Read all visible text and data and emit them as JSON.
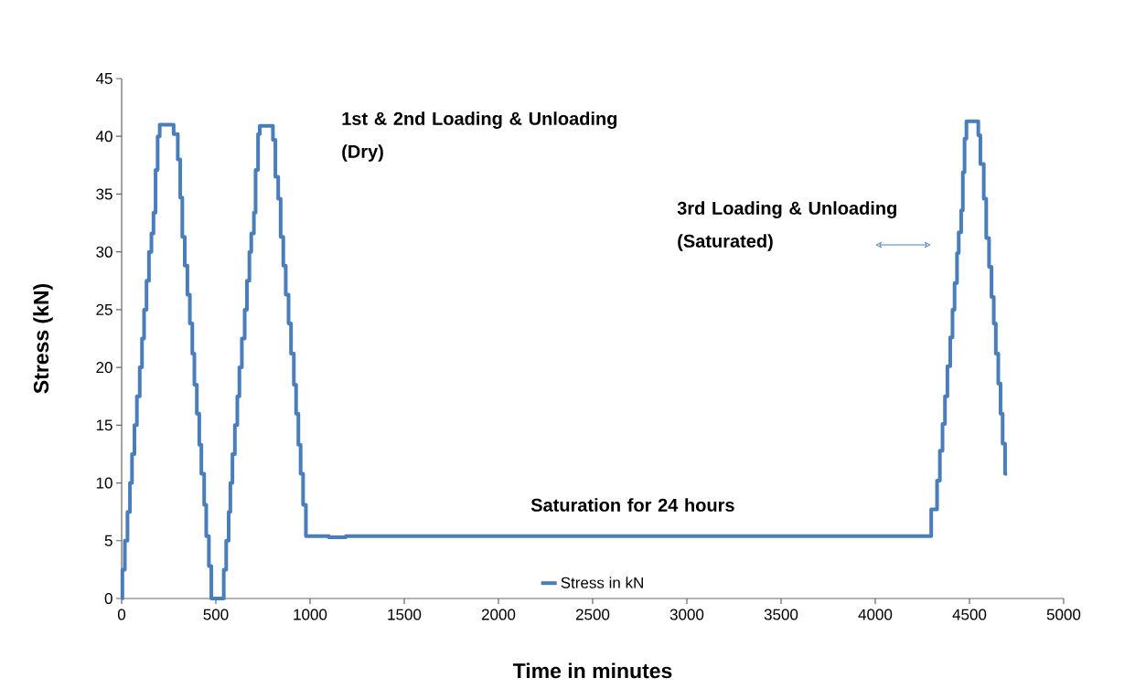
{
  "chart_data": {
    "type": "step",
    "xlabel": "Time in minutes",
    "ylabel": "Stress (kN)",
    "xlim": [
      0,
      5000
    ],
    "xticks": [
      0,
      500,
      1000,
      1500,
      2000,
      2500,
      3000,
      3500,
      4000,
      4500,
      5000
    ],
    "ylim": [
      0,
      45
    ],
    "yticks": [
      0,
      5,
      10,
      15,
      20,
      25,
      30,
      35,
      40,
      45
    ],
    "legend": "bottom",
    "annotations": [
      "1st & 2nd Loading & Unloading (Dry)",
      "3rd Loading & Unloading (Saturated)",
      "Saturation for 24 hours"
    ],
    "series": [
      {
        "name": "Stress in kN",
        "color": "#4a7ebb",
        "x": [
          0,
          4,
          17,
          31,
          44,
          55,
          68,
          81,
          96,
          108,
          119,
          132,
          145,
          158,
          169,
          180,
          191,
          202,
          276,
          298,
          311,
          322,
          335,
          349,
          362,
          375,
          386,
          399,
          412,
          423,
          438,
          449,
          463,
          476,
          542,
          555,
          568,
          577,
          588,
          601,
          614,
          625,
          638,
          653,
          665,
          678,
          688,
          702,
          711,
          724,
          733,
          803,
          816,
          831,
          844,
          858,
          871,
          886,
          899,
          914,
          926,
          938,
          950,
          963,
          978,
          1100,
          1190,
          4297,
          4328,
          4343,
          4357,
          4370,
          4383,
          4398,
          4410,
          4421,
          4434,
          4443,
          4456,
          4465,
          4474,
          4484,
          4547,
          4558,
          4576,
          4589,
          4604,
          4617,
          4629,
          4640,
          4653,
          4665,
          4676,
          4689,
          4700
        ],
        "values": [
          0,
          2.5,
          5,
          7.5,
          10,
          12.5,
          15,
          17.5,
          20,
          22.5,
          25,
          27.5,
          30,
          31.6,
          33.4,
          37.1,
          40,
          41,
          40.2,
          38,
          34.7,
          31.3,
          28.8,
          26.3,
          23.8,
          21.2,
          18.5,
          16,
          13.3,
          10.8,
          8.1,
          5.4,
          2.8,
          0,
          2.5,
          5,
          7.5,
          10,
          12.5,
          15,
          17.5,
          20,
          22.5,
          25,
          27.5,
          30,
          31.6,
          33.4,
          37.1,
          40.2,
          40.9,
          39.7,
          36.5,
          34.6,
          31.3,
          28.8,
          26.3,
          23.8,
          21.2,
          18.5,
          16,
          13.3,
          10.8,
          8.1,
          5.4,
          5.3,
          5.4,
          7.7,
          10.2,
          12.8,
          15.1,
          17.5,
          20.1,
          22.6,
          25,
          27.3,
          29.9,
          31.7,
          33.6,
          36.9,
          39.8,
          41.3,
          40.1,
          37.6,
          34.6,
          31.2,
          28.7,
          26.1,
          23.8,
          21.2,
          18.6,
          16,
          13.4,
          10.8,
          10.8
        ]
      }
    ]
  }
}
